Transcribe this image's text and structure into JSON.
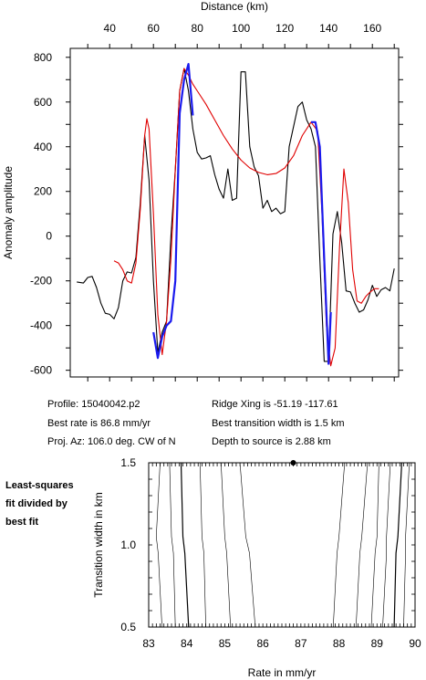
{
  "chart_data": [
    {
      "type": "line",
      "xlabel": "Distance (km)",
      "ylabel": "Anomaly amplitude",
      "xlim": [
        22,
        172
      ],
      "ylim": [
        -630,
        840
      ],
      "xticks": [
        40,
        60,
        80,
        100,
        120,
        140,
        160
      ],
      "yticks": [
        -600,
        -400,
        -200,
        0,
        200,
        400,
        600,
        800
      ],
      "x_axis_position": "top",
      "grid": false,
      "legend": "none",
      "series": [
        {
          "color": "#000000",
          "x": [
            25,
            28,
            30,
            32,
            34,
            36,
            38,
            40,
            42,
            44,
            46,
            48,
            50,
            52,
            54,
            56,
            58,
            60,
            62,
            64,
            66,
            68,
            70,
            72,
            74,
            76,
            78,
            80,
            82,
            84,
            86,
            88,
            90,
            92,
            94,
            96,
            98,
            100,
            102,
            104,
            106,
            108,
            110,
            112,
            114,
            116,
            118,
            120,
            122,
            124,
            126,
            128,
            130,
            132,
            134,
            136,
            138,
            140,
            142,
            144,
            146,
            148,
            150,
            152,
            154,
            156,
            158,
            160,
            162,
            164,
            166,
            168,
            170
          ],
          "values": [
            -205,
            -210,
            -185,
            -180,
            -230,
            -300,
            -345,
            -350,
            -370,
            -320,
            -200,
            -160,
            -165,
            -95,
            150,
            450,
            250,
            -200,
            -520,
            -430,
            -380,
            0,
            300,
            650,
            750,
            650,
            480,
            375,
            345,
            350,
            360,
            275,
            210,
            170,
            300,
            160,
            170,
            735,
            735,
            400,
            310,
            270,
            125,
            160,
            110,
            125,
            100,
            110,
            400,
            490,
            580,
            600,
            520,
            480,
            400,
            -100,
            -560,
            -560,
            10,
            110,
            -30,
            -245,
            -250,
            -300,
            -340,
            -330,
            -285,
            -220,
            -270,
            -240,
            -230,
            -245,
            -145
          ]
        },
        {
          "color": "#e00000",
          "x": [
            42,
            44,
            46,
            48,
            50,
            52,
            54,
            56,
            57,
            58,
            60,
            62,
            64,
            66,
            68,
            70,
            72,
            74,
            76,
            78,
            80,
            84,
            88,
            92,
            96,
            100,
            104,
            108,
            112,
            116,
            120,
            124,
            128,
            132,
            135,
            137,
            139,
            141,
            143,
            145,
            147,
            149,
            151,
            153,
            155,
            157,
            159,
            161,
            163
          ],
          "values": [
            -110,
            -120,
            -150,
            -200,
            -210,
            -120,
            120,
            450,
            525,
            480,
            100,
            -350,
            -530,
            -380,
            -100,
            300,
            650,
            750,
            720,
            680,
            650,
            590,
            520,
            450,
            390,
            340,
            305,
            285,
            275,
            280,
            305,
            360,
            450,
            510,
            470,
            100,
            -400,
            -580,
            -500,
            -50,
            300,
            150,
            -150,
            -290,
            -300,
            -270,
            -250,
            -235,
            -235
          ]
        },
        {
          "color": "#1a1aee",
          "x": [
            60,
            62,
            64,
            66,
            68,
            70,
            72,
            74,
            76,
            78
          ],
          "values": [
            -430,
            -545,
            -450,
            -400,
            -380,
            -200,
            550,
            700,
            770,
            540
          ]
        },
        {
          "color": "#1a1aee",
          "x": [
            132,
            134,
            136,
            138,
            140
          ],
          "values": [
            510,
            510,
            400,
            -100,
            -570
          ]
        },
        {
          "color": "#1a1aee",
          "x": [
            140,
            141
          ],
          "values": [
            -575,
            -340
          ]
        }
      ]
    },
    {
      "type": "contour",
      "xlabel": "Rate in mm/yr",
      "ylabel": "Transition width in km",
      "xlim": [
        83,
        90
      ],
      "ylim": [
        0.5,
        1.5
      ],
      "xticks": [
        83,
        84,
        85,
        86,
        87,
        88,
        89,
        90
      ],
      "yticks": [
        0.5,
        1.0,
        1.5
      ],
      "best_fit_point": {
        "x": 86.8,
        "y": 1.5
      },
      "contours": [
        {
          "x": [
            83.0,
            83.0,
            83.0,
            83.0
          ],
          "y": [
            0.5,
            0.95,
            1.05,
            1.5
          ]
        },
        {
          "x": [
            83.35,
            83.25,
            83.2,
            83.3
          ],
          "y": [
            0.5,
            0.95,
            1.05,
            1.5
          ]
        },
        {
          "x": [
            83.7,
            83.65,
            83.6,
            83.55
          ],
          "y": [
            0.5,
            0.95,
            1.05,
            1.5
          ]
        },
        {
          "x": [
            84.05,
            83.95,
            83.9,
            83.85
          ],
          "y": [
            0.5,
            0.95,
            1.05,
            1.5
          ]
        },
        {
          "x": [
            84.5,
            84.45,
            84.4,
            84.35
          ],
          "y": [
            0.5,
            0.95,
            1.05,
            1.5
          ]
        },
        {
          "x": [
            85.15,
            85.05,
            85.0,
            84.9
          ],
          "y": [
            0.5,
            0.95,
            1.05,
            1.5
          ]
        },
        {
          "x": [
            85.8,
            85.65,
            85.55,
            85.4
          ],
          "y": [
            0.5,
            0.95,
            1.05,
            1.5
          ]
        },
        {
          "x": [
            87.85,
            87.95,
            88.0,
            88.15
          ],
          "y": [
            0.5,
            0.95,
            1.05,
            1.5
          ]
        },
        {
          "x": [
            88.45,
            88.55,
            88.6,
            88.75
          ],
          "y": [
            0.5,
            0.95,
            1.05,
            1.5
          ]
        },
        {
          "x": [
            88.85,
            88.95,
            89.0,
            89.05
          ],
          "y": [
            0.5,
            0.95,
            1.05,
            1.5
          ]
        },
        {
          "x": [
            89.15,
            89.25,
            89.25,
            89.35
          ],
          "y": [
            0.5,
            0.95,
            1.05,
            1.5
          ]
        },
        {
          "x": [
            89.45,
            89.5,
            89.55,
            89.65
          ],
          "y": [
            0.5,
            0.95,
            1.05,
            1.5
          ]
        },
        {
          "x": [
            89.7,
            89.75,
            89.75,
            89.85
          ],
          "y": [
            0.5,
            0.95,
            1.05,
            1.5
          ]
        }
      ]
    }
  ],
  "info": {
    "profile": "Profile: 15040042.p2",
    "ridge": "Ridge Xing is -51.19 -117.61",
    "rate": "Best rate is 86.8 mm/yr",
    "width": "Best transition width is 1.5 km",
    "azimuth": "Proj. Az: 106.0 deg. CW of N",
    "depth": "Depth to source is   2.88 km"
  },
  "note": {
    "line1": "Least-squares",
    "line2": "fit divided by",
    "line3": "best fit"
  }
}
